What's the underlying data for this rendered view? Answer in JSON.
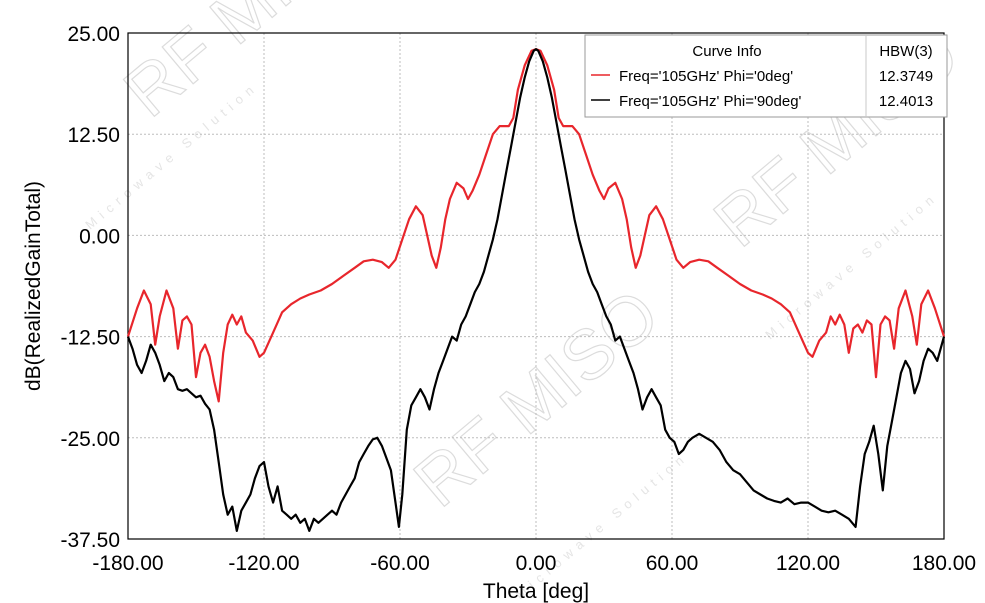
{
  "chart_data": {
    "type": "line",
    "title": "",
    "xlabel": "Theta [deg]",
    "ylabel": "dB(RealizedGainTotal)",
    "xlim": [
      -180,
      180
    ],
    "ylim": [
      -37.5,
      25
    ],
    "x_ticks": [
      "-180.00",
      "-120.00",
      "-60.00",
      "0.00",
      "60.00",
      "120.00",
      "180.00"
    ],
    "y_ticks": [
      "25.00",
      "12.50",
      "0.00",
      "-12.50",
      "-25.00",
      "-37.50"
    ],
    "grid": true,
    "legend": {
      "placement": "top-right",
      "header": "Curve Info",
      "value_header": "HBW(3)"
    },
    "series": [
      {
        "name": "Freq='105GHz' Phi='0deg'",
        "hbw": "12.3749",
        "color": "#e8262c",
        "points": [
          [
            -180,
            -12.5
          ],
          [
            -176,
            -9
          ],
          [
            -173,
            -6.8
          ],
          [
            -170,
            -8.5
          ],
          [
            -168,
            -13.5
          ],
          [
            -166,
            -10
          ],
          [
            -163,
            -6.8
          ],
          [
            -160,
            -9
          ],
          [
            -158,
            -14
          ],
          [
            -156,
            -10.5
          ],
          [
            -154,
            -10
          ],
          [
            -152,
            -11
          ],
          [
            -150,
            -17.5
          ],
          [
            -148,
            -14.5
          ],
          [
            -146,
            -13.5
          ],
          [
            -144,
            -15
          ],
          [
            -142,
            -18
          ],
          [
            -140,
            -20.5
          ],
          [
            -138,
            -14.5
          ],
          [
            -136,
            -11
          ],
          [
            -134,
            -9.8
          ],
          [
            -132,
            -11
          ],
          [
            -130,
            -10
          ],
          [
            -128,
            -12
          ],
          [
            -125,
            -13
          ],
          [
            -122,
            -15
          ],
          [
            -120,
            -14.5
          ],
          [
            -116,
            -12
          ],
          [
            -112,
            -9.5
          ],
          [
            -108,
            -8.5
          ],
          [
            -104,
            -7.8
          ],
          [
            -100,
            -7.3
          ],
          [
            -95,
            -6.8
          ],
          [
            -90,
            -6
          ],
          [
            -85,
            -5
          ],
          [
            -80,
            -4
          ],
          [
            -76,
            -3.2
          ],
          [
            -72,
            -3
          ],
          [
            -68,
            -3.3
          ],
          [
            -65,
            -4
          ],
          [
            -62,
            -3
          ],
          [
            -59,
            -0.5
          ],
          [
            -56,
            2
          ],
          [
            -53,
            3.6
          ],
          [
            -50,
            2.5
          ],
          [
            -48,
            0
          ],
          [
            -46,
            -2.5
          ],
          [
            -44,
            -4
          ],
          [
            -42,
            -1.5
          ],
          [
            -40,
            2
          ],
          [
            -38,
            4.5
          ],
          [
            -35,
            6.5
          ],
          [
            -32,
            5.8
          ],
          [
            -30,
            4.5
          ],
          [
            -28,
            5.5
          ],
          [
            -25,
            7.5
          ],
          [
            -22,
            10
          ],
          [
            -19,
            12.5
          ],
          [
            -16,
            13.5
          ],
          [
            -12,
            13.5
          ],
          [
            -10,
            14.5
          ],
          [
            -8,
            18
          ],
          [
            -5,
            21
          ],
          [
            -2,
            22.8
          ],
          [
            0,
            23
          ],
          [
            2,
            22.8
          ],
          [
            5,
            21
          ],
          [
            8,
            18
          ],
          [
            10,
            14.5
          ],
          [
            12,
            13.5
          ],
          [
            16,
            13.5
          ],
          [
            19,
            12.5
          ],
          [
            22,
            10
          ],
          [
            25,
            7.5
          ],
          [
            28,
            5.5
          ],
          [
            30,
            4.5
          ],
          [
            32,
            5.8
          ],
          [
            35,
            6.5
          ],
          [
            38,
            4.5
          ],
          [
            40,
            2
          ],
          [
            42,
            -1.5
          ],
          [
            44,
            -4
          ],
          [
            46,
            -2.5
          ],
          [
            48,
            0
          ],
          [
            50,
            2.5
          ],
          [
            53,
            3.6
          ],
          [
            56,
            2
          ],
          [
            59,
            -0.5
          ],
          [
            62,
            -3
          ],
          [
            65,
            -4
          ],
          [
            68,
            -3.3
          ],
          [
            72,
            -3
          ],
          [
            76,
            -3.2
          ],
          [
            80,
            -4
          ],
          [
            85,
            -5
          ],
          [
            90,
            -6
          ],
          [
            95,
            -6.8
          ],
          [
            100,
            -7.3
          ],
          [
            104,
            -7.8
          ],
          [
            108,
            -8.5
          ],
          [
            112,
            -9.5
          ],
          [
            116,
            -12
          ],
          [
            120,
            -14.5
          ],
          [
            122,
            -15
          ],
          [
            125,
            -13
          ],
          [
            128,
            -12
          ],
          [
            130,
            -10
          ],
          [
            132,
            -11
          ],
          [
            134,
            -9.8
          ],
          [
            136,
            -11
          ],
          [
            138,
            -14.5
          ],
          [
            140,
            -11.5
          ],
          [
            142,
            -11
          ],
          [
            144,
            -12
          ],
          [
            146,
            -10.5
          ],
          [
            148,
            -11
          ],
          [
            150,
            -17.5
          ],
          [
            152,
            -11
          ],
          [
            154,
            -10
          ],
          [
            156,
            -10.5
          ],
          [
            158,
            -14
          ],
          [
            160,
            -9
          ],
          [
            163,
            -6.8
          ],
          [
            166,
            -10
          ],
          [
            168,
            -13.5
          ],
          [
            170,
            -8.5
          ],
          [
            173,
            -6.8
          ],
          [
            176,
            -9
          ],
          [
            180,
            -12.5
          ]
        ]
      },
      {
        "name": "Freq='105GHz' Phi='90deg'",
        "hbw": "12.4013",
        "color": "#000000",
        "points": [
          [
            -180,
            -12.5
          ],
          [
            -178,
            -14
          ],
          [
            -176,
            -16
          ],
          [
            -174,
            -17
          ],
          [
            -172,
            -15.5
          ],
          [
            -170,
            -13.5
          ],
          [
            -168,
            -14.5
          ],
          [
            -166,
            -16
          ],
          [
            -164,
            -18
          ],
          [
            -162,
            -17
          ],
          [
            -160,
            -17.5
          ],
          [
            -158,
            -19
          ],
          [
            -156,
            -19.2
          ],
          [
            -154,
            -19
          ],
          [
            -152,
            -19.5
          ],
          [
            -150,
            -20
          ],
          [
            -148,
            -19.8
          ],
          [
            -146,
            -20.8
          ],
          [
            -144,
            -21.5
          ],
          [
            -142,
            -24
          ],
          [
            -140,
            -28
          ],
          [
            -138,
            -32
          ],
          [
            -136,
            -34.5
          ],
          [
            -134,
            -33.5
          ],
          [
            -132,
            -36.5
          ],
          [
            -130,
            -34
          ],
          [
            -128,
            -33
          ],
          [
            -126,
            -32
          ],
          [
            -124,
            -30
          ],
          [
            -122,
            -28.5
          ],
          [
            -120,
            -28
          ],
          [
            -118,
            -31
          ],
          [
            -116,
            -33
          ],
          [
            -114,
            -31
          ],
          [
            -112,
            -34
          ],
          [
            -110,
            -34.5
          ],
          [
            -108,
            -35
          ],
          [
            -106,
            -34.5
          ],
          [
            -104,
            -35.5
          ],
          [
            -102,
            -35
          ],
          [
            -100,
            -36.5
          ],
          [
            -98,
            -35
          ],
          [
            -96,
            -35.5
          ],
          [
            -94,
            -35
          ],
          [
            -92,
            -34.5
          ],
          [
            -90,
            -34
          ],
          [
            -88,
            -34.5
          ],
          [
            -86,
            -33
          ],
          [
            -84,
            -32
          ],
          [
            -82,
            -31
          ],
          [
            -80,
            -30
          ],
          [
            -78,
            -28
          ],
          [
            -76,
            -27
          ],
          [
            -74,
            -26
          ],
          [
            -72,
            -25.2
          ],
          [
            -70,
            -25
          ],
          [
            -68,
            -26
          ],
          [
            -66,
            -27.5
          ],
          [
            -64,
            -29
          ],
          [
            -62,
            -33
          ],
          [
            -60.5,
            -36
          ],
          [
            -59,
            -32
          ],
          [
            -57,
            -24
          ],
          [
            -55,
            -21
          ],
          [
            -53,
            -20
          ],
          [
            -51,
            -19
          ],
          [
            -49,
            -20
          ],
          [
            -47,
            -21.5
          ],
          [
            -45,
            -19
          ],
          [
            -43,
            -17
          ],
          [
            -41,
            -15.5
          ],
          [
            -39,
            -14
          ],
          [
            -37,
            -12.5
          ],
          [
            -35,
            -13
          ],
          [
            -33,
            -11
          ],
          [
            -31,
            -10
          ],
          [
            -29,
            -8.5
          ],
          [
            -27,
            -7
          ],
          [
            -25,
            -6
          ],
          [
            -23,
            -4.5
          ],
          [
            -21,
            -2.5
          ],
          [
            -19,
            -0.5
          ],
          [
            -17,
            2
          ],
          [
            -15,
            5
          ],
          [
            -13,
            8
          ],
          [
            -11,
            11
          ],
          [
            -9,
            14
          ],
          [
            -7,
            17
          ],
          [
            -5,
            19.5
          ],
          [
            -3,
            21.5
          ],
          [
            -1,
            22.8
          ],
          [
            0,
            23
          ],
          [
            1,
            22.8
          ],
          [
            3,
            21.5
          ],
          [
            5,
            19.5
          ],
          [
            7,
            17
          ],
          [
            9,
            14
          ],
          [
            11,
            11
          ],
          [
            13,
            8
          ],
          [
            15,
            5
          ],
          [
            17,
            2
          ],
          [
            19,
            -0.5
          ],
          [
            21,
            -2.5
          ],
          [
            23,
            -4.5
          ],
          [
            25,
            -6
          ],
          [
            27,
            -7
          ],
          [
            29,
            -8.5
          ],
          [
            31,
            -10
          ],
          [
            33,
            -11
          ],
          [
            35,
            -13
          ],
          [
            37,
            -12.5
          ],
          [
            39,
            -14
          ],
          [
            41,
            -15.5
          ],
          [
            43,
            -17
          ],
          [
            45,
            -19
          ],
          [
            47,
            -21.5
          ],
          [
            49,
            -20
          ],
          [
            51,
            -19
          ],
          [
            53,
            -20
          ],
          [
            55,
            -21
          ],
          [
            57,
            -24
          ],
          [
            59,
            -25
          ],
          [
            61,
            -25.5
          ],
          [
            63,
            -27
          ],
          [
            65,
            -26.5
          ],
          [
            67,
            -25.5
          ],
          [
            69,
            -25
          ],
          [
            72,
            -24.5
          ],
          [
            75,
            -25
          ],
          [
            78,
            -25.5
          ],
          [
            81,
            -26.5
          ],
          [
            84,
            -28
          ],
          [
            87,
            -29
          ],
          [
            90,
            -29.5
          ],
          [
            93,
            -30.5
          ],
          [
            96,
            -31.5
          ],
          [
            99,
            -32
          ],
          [
            102,
            -32.5
          ],
          [
            105,
            -32.8
          ],
          [
            108,
            -33
          ],
          [
            111,
            -32.5
          ],
          [
            114,
            -33.2
          ],
          [
            117,
            -33
          ],
          [
            120,
            -33
          ],
          [
            123,
            -33.5
          ],
          [
            126,
            -34
          ],
          [
            129,
            -34.2
          ],
          [
            132,
            -34
          ],
          [
            135,
            -34.5
          ],
          [
            138,
            -35
          ],
          [
            141,
            -36
          ],
          [
            143,
            -31
          ],
          [
            145,
            -27
          ],
          [
            147,
            -25.5
          ],
          [
            149,
            -23.5
          ],
          [
            151,
            -27
          ],
          [
            153,
            -31.5
          ],
          [
            155,
            -26
          ],
          [
            157,
            -23
          ],
          [
            159,
            -20
          ],
          [
            161,
            -17
          ],
          [
            163,
            -15.5
          ],
          [
            165,
            -16.5
          ],
          [
            167,
            -19.5
          ],
          [
            169,
            -18
          ],
          [
            171,
            -15.5
          ],
          [
            173,
            -14
          ],
          [
            175,
            -14.5
          ],
          [
            177,
            -15.5
          ],
          [
            180,
            -12.5
          ]
        ]
      }
    ]
  }
}
